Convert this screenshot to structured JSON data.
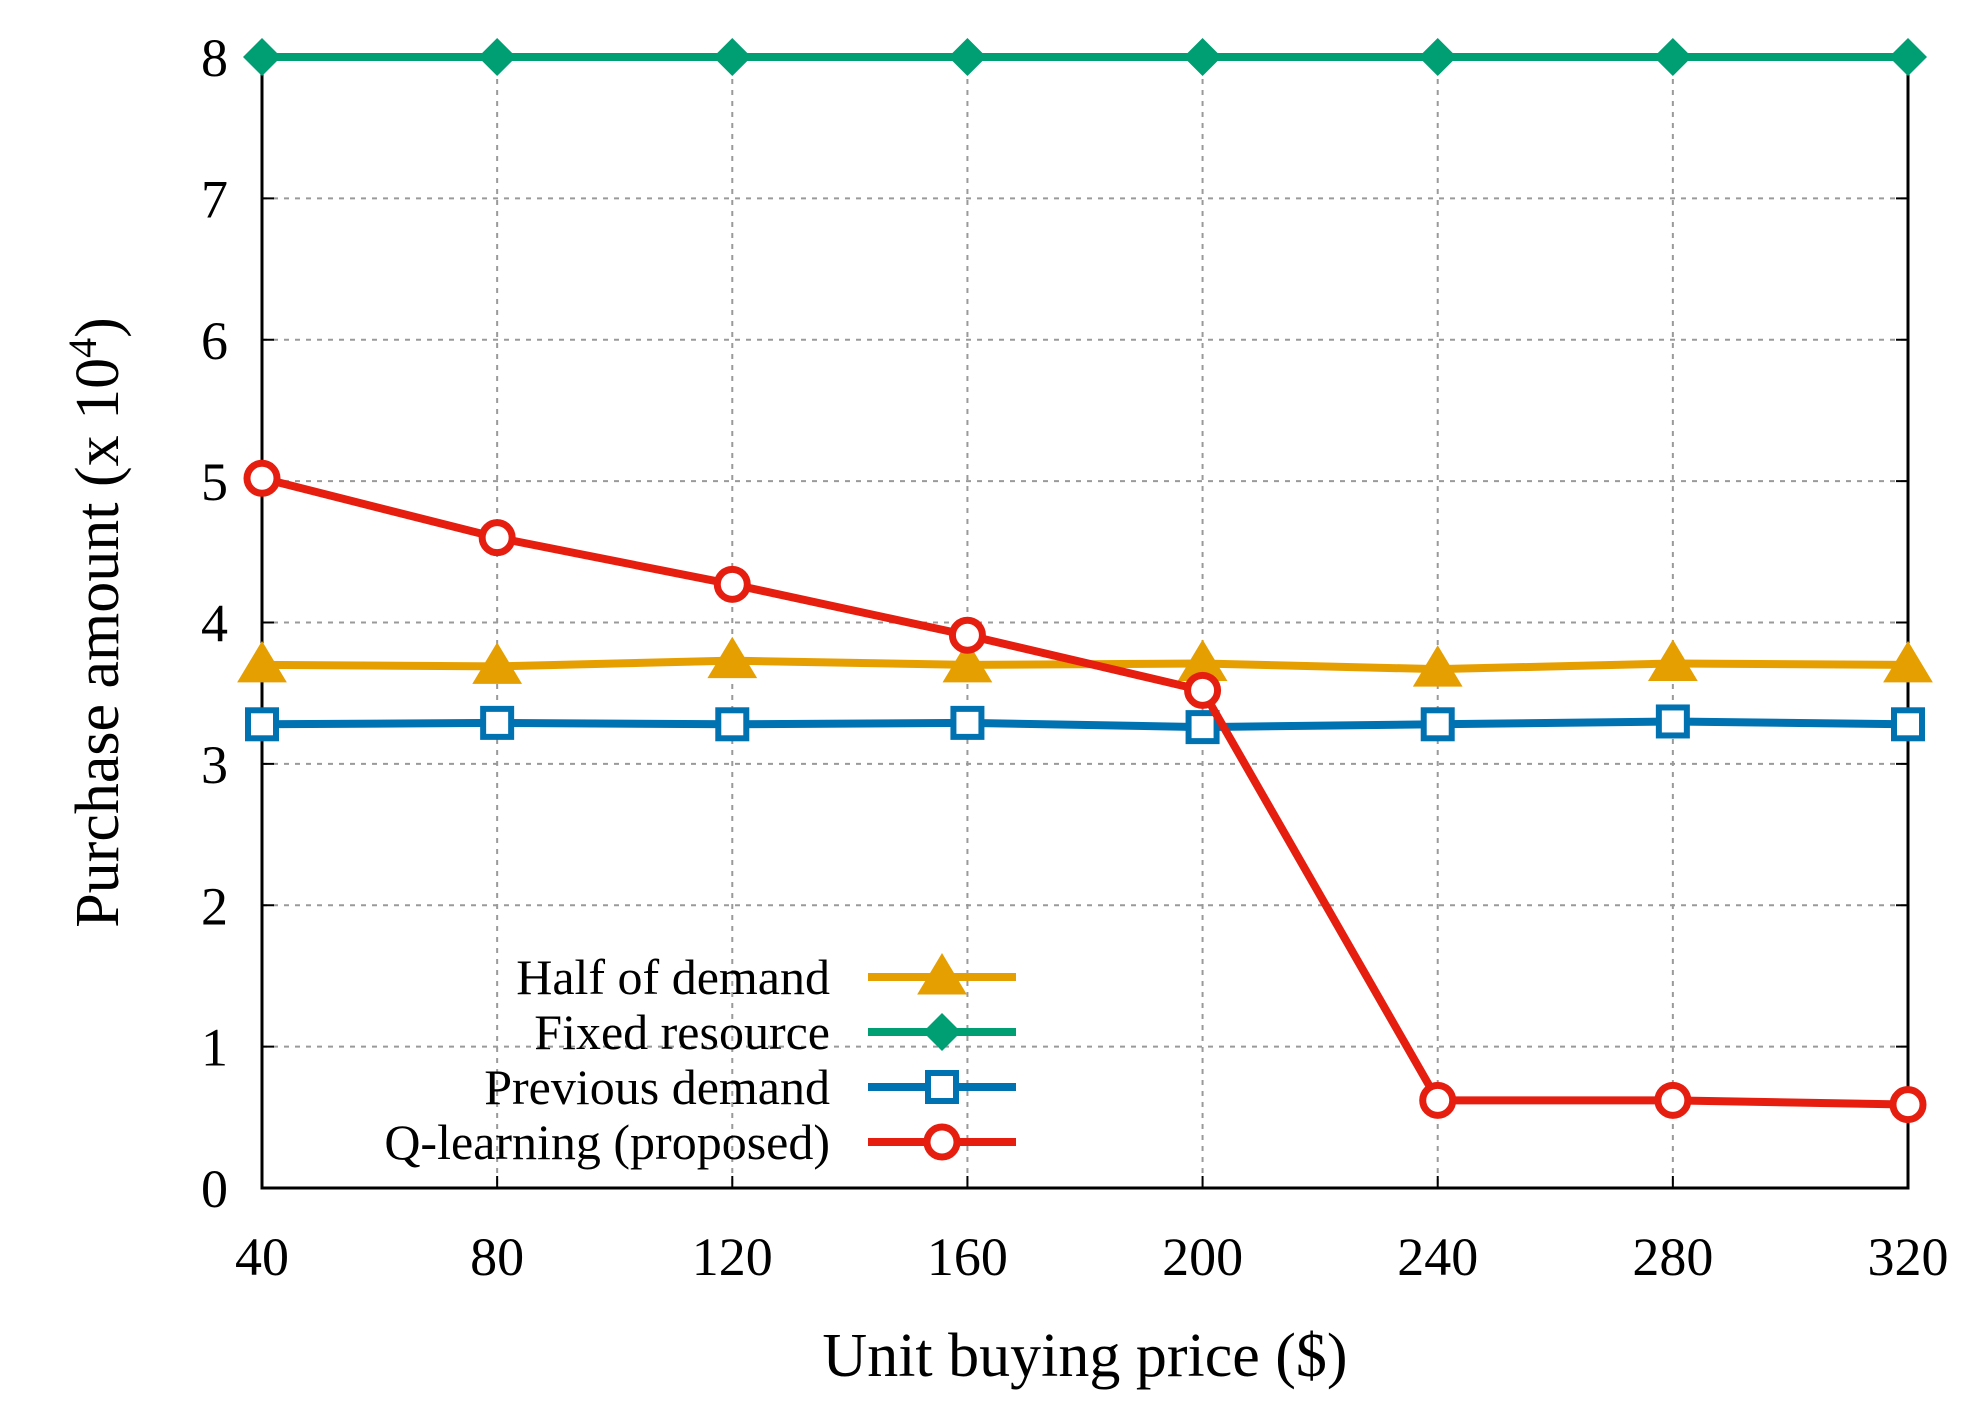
{
  "chart_data": {
    "type": "line",
    "title": "",
    "xlabel": "Unit buying price ($)",
    "ylabel": "Purchase amount (x 10",
    "ylabel_exponent": "4",
    "ylabel_suffix": ")",
    "x": [
      40,
      80,
      120,
      160,
      200,
      240,
      280,
      320
    ],
    "xlim": [
      40,
      320
    ],
    "ylim": [
      0,
      8
    ],
    "xticks": [
      "40",
      "80",
      "120",
      "160",
      "200",
      "240",
      "280",
      "320"
    ],
    "yticks": [
      "0",
      "1",
      "2",
      "3",
      "4",
      "5",
      "6",
      "7",
      "8"
    ],
    "grid": true,
    "legend_position": "bottom-left",
    "series": [
      {
        "name": "Half of demand",
        "color": "#e69f00",
        "marker": "triangle",
        "values": [
          3.7,
          3.69,
          3.73,
          3.7,
          3.71,
          3.67,
          3.71,
          3.7
        ]
      },
      {
        "name": "Fixed resource",
        "color": "#009e73",
        "marker": "diamond",
        "values": [
          8.0,
          8.0,
          8.0,
          8.0,
          8.0,
          8.0,
          8.0,
          8.0
        ]
      },
      {
        "name": "Previous demand",
        "color": "#0072b2",
        "marker": "square",
        "values": [
          3.28,
          3.29,
          3.28,
          3.29,
          3.26,
          3.28,
          3.3,
          3.28
        ]
      },
      {
        "name": "Q-learning (proposed)",
        "color": "#e51e10",
        "marker": "circle",
        "values": [
          5.02,
          4.6,
          4.27,
          3.91,
          3.52,
          0.62,
          0.62,
          0.59
        ]
      }
    ]
  }
}
